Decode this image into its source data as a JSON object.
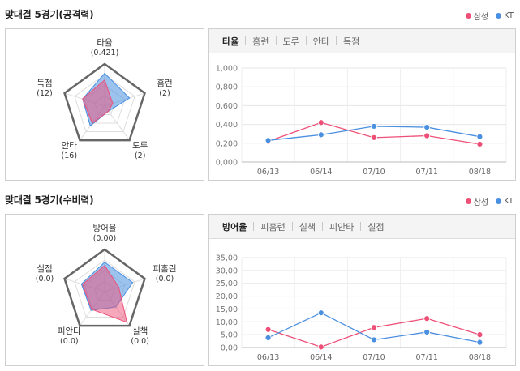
{
  "legend": {
    "samsung": "삼성",
    "kt": "KT"
  },
  "colors": {
    "samsung": "#ee4f77",
    "kt": "#4a8fe0",
    "grid": "#dddddd",
    "frame": "#666666"
  },
  "sections": [
    {
      "title": "맞대결 5경기(공격력)",
      "radar": {
        "axes": [
          {
            "name": "타율",
            "value": "(0.421)"
          },
          {
            "name": "홈런",
            "value": "(2)"
          },
          {
            "name": "도루",
            "value": "(2)"
          },
          {
            "name": "안타",
            "value": "(16)"
          },
          {
            "name": "득점",
            "value": "(12)"
          }
        ],
        "samsung": [
          0.62,
          0.2,
          0.15,
          0.5,
          0.55
        ],
        "kt": [
          0.78,
          0.62,
          0.15,
          0.58,
          0.55
        ]
      },
      "tabs": [
        "타율",
        "홈런",
        "도루",
        "안타",
        "득점"
      ],
      "active_tab": 0
    },
    {
      "title": "맞대결 5경기(수비력)",
      "radar": {
        "axes": [
          {
            "name": "방어율",
            "value": "(0.00)"
          },
          {
            "name": "피홈런",
            "value": "(0.0)"
          },
          {
            "name": "실책",
            "value": "(0.0)"
          },
          {
            "name": "피안타",
            "value": "(0.0)"
          },
          {
            "name": "실점",
            "value": "(0.0)"
          }
        ],
        "samsung": [
          0.62,
          0.35,
          0.9,
          0.52,
          0.55
        ],
        "kt": [
          0.7,
          0.7,
          0.45,
          0.55,
          0.58
        ]
      },
      "tabs": [
        "방어율",
        "피홈런",
        "실책",
        "피안타",
        "실점"
      ],
      "active_tab": 0
    }
  ],
  "chart_data": [
    {
      "type": "line",
      "title": "맞대결 5경기(공격력) - 타율",
      "categories": [
        "06/13",
        "06/14",
        "07/10",
        "07/11",
        "08/18"
      ],
      "ylim": [
        0,
        1
      ],
      "yticks": [
        "1,000",
        "0,800",
        "0,600",
        "0,400",
        "0,200",
        "0,000"
      ],
      "series": [
        {
          "name": "삼성",
          "values": [
            0.22,
            0.42,
            0.26,
            0.28,
            0.19
          ]
        },
        {
          "name": "KT",
          "values": [
            0.23,
            0.29,
            0.38,
            0.37,
            0.27
          ]
        }
      ]
    },
    {
      "type": "line",
      "title": "맞대결 5경기(수비력) - 방어율",
      "categories": [
        "06/13",
        "06/14",
        "07/10",
        "07/11",
        "08/18"
      ],
      "ylim": [
        0,
        35
      ],
      "yticks": [
        "35,00",
        "30,00",
        "25,00",
        "20,00",
        "15,00",
        "10,00",
        "5,00",
        "0,00"
      ],
      "series": [
        {
          "name": "삼성",
          "values": [
            7.0,
            0.2,
            7.8,
            11.3,
            5.0
          ]
        },
        {
          "name": "KT",
          "values": [
            3.8,
            13.5,
            3.0,
            6.0,
            2.0
          ]
        }
      ]
    }
  ]
}
